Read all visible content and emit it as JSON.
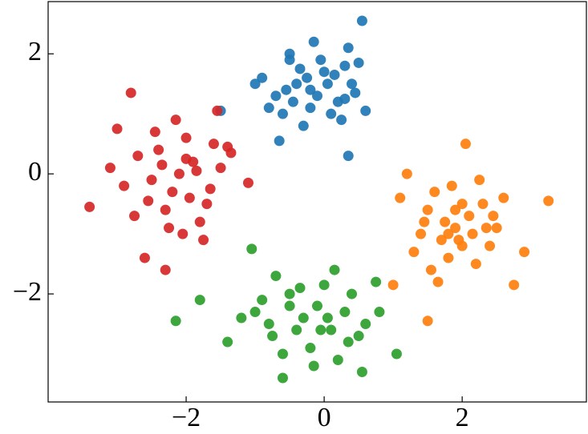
{
  "chart_data": {
    "type": "scatter",
    "xlim": [
      -4.0,
      3.8
    ],
    "ylim": [
      -3.8,
      2.87
    ],
    "xticks": [
      {
        "value": -2,
        "label": "−2"
      },
      0,
      2
    ],
    "yticks": [
      {
        "value": -2,
        "label": "−2"
      },
      0,
      2
    ],
    "grid": false,
    "series": [
      {
        "color": "#1f77b4",
        "x": [
          0.55,
          -0.15,
          -0.5,
          0.35,
          -1.5,
          0.6,
          -0.9,
          -0.7,
          -0.4,
          -0.2,
          0.0,
          0.2,
          0.4,
          -0.6,
          -0.3,
          0.1,
          -0.1,
          -0.8,
          0.3,
          -0.5,
          -0.25,
          0.05,
          -0.45,
          0.25,
          -1.0,
          0.45,
          -0.35,
          0.15,
          -0.65,
          0.35,
          -0.2,
          0.5,
          -0.55,
          0.3,
          -0.05
        ],
        "values": [
          2.55,
          2.2,
          2.0,
          2.1,
          1.05,
          1.05,
          1.6,
          1.3,
          1.5,
          1.4,
          1.7,
          1.2,
          1.5,
          1.0,
          0.8,
          1.0,
          1.3,
          1.1,
          1.8,
          1.9,
          1.6,
          1.5,
          1.2,
          0.9,
          1.5,
          1.35,
          1.75,
          1.65,
          0.55,
          0.3,
          1.1,
          1.85,
          1.4,
          1.25,
          1.9
        ]
      },
      {
        "color": "#ff7f0e",
        "x": [
          3.25,
          1.5,
          1.0,
          2.05,
          2.75,
          1.2,
          1.9,
          1.7,
          2.1,
          2.3,
          1.5,
          1.8,
          2.0,
          2.5,
          1.4,
          2.2,
          1.6,
          2.4,
          1.9,
          1.3,
          2.6,
          1.75,
          2.15,
          1.55,
          2.35,
          1.85,
          2.9,
          1.1,
          2.0,
          1.65,
          2.45,
          1.95,
          1.45,
          2.25,
          1.8
        ],
        "values": [
          -0.45,
          -2.45,
          -1.85,
          0.5,
          -1.85,
          0.0,
          -0.9,
          -1.1,
          -0.7,
          -0.5,
          -0.6,
          -1.4,
          -1.2,
          -0.9,
          -1.0,
          -1.5,
          -0.3,
          -1.2,
          -0.6,
          -1.3,
          -0.4,
          -0.8,
          -1.0,
          -1.6,
          -0.9,
          -0.2,
          -1.3,
          -0.4,
          -0.5,
          -1.8,
          -0.7,
          -1.1,
          -0.8,
          -0.1,
          -1.0
        ]
      },
      {
        "color": "#2ca02c",
        "x": [
          -2.15,
          -1.8,
          -1.05,
          -0.6,
          1.05,
          0.75,
          -1.4,
          -0.3,
          -0.1,
          0.1,
          -0.5,
          -0.8,
          0.3,
          -0.2,
          0.5,
          -0.7,
          0.0,
          -1.0,
          0.2,
          -0.4,
          -0.9,
          0.4,
          -0.15,
          0.6,
          -0.6,
          0.05,
          -1.2,
          0.35,
          -0.35,
          0.8,
          -0.75,
          0.15,
          -0.5,
          0.55,
          -0.05
        ],
        "values": [
          -2.45,
          -2.1,
          -1.25,
          -3.4,
          -3.0,
          -1.8,
          -2.8,
          -2.4,
          -2.2,
          -2.6,
          -2.0,
          -2.5,
          -2.3,
          -2.9,
          -2.7,
          -1.7,
          -1.85,
          -2.3,
          -3.1,
          -2.6,
          -2.1,
          -2.0,
          -3.2,
          -2.5,
          -3.0,
          -2.4,
          -2.4,
          -2.8,
          -1.9,
          -2.3,
          -2.7,
          -1.6,
          -2.2,
          -3.3,
          -2.6
        ]
      },
      {
        "color": "#d62728",
        "x": [
          -3.4,
          -2.8,
          -1.55,
          -2.6,
          -1.1,
          -3.0,
          -2.3,
          -2.1,
          -1.9,
          -2.2,
          -2.4,
          -1.7,
          -2.0,
          -2.5,
          -1.8,
          -2.7,
          -1.5,
          -2.3,
          -1.95,
          -2.15,
          -2.9,
          -1.6,
          -2.05,
          -1.35,
          -2.45,
          -1.85,
          -3.1,
          -2.25,
          -1.65,
          -2.55,
          -1.4,
          -2.0,
          -2.75,
          -1.75,
          -2.35
        ],
        "values": [
          -0.55,
          1.35,
          1.05,
          -1.4,
          -0.15,
          0.75,
          -1.6,
          0.0,
          0.2,
          -0.3,
          0.4,
          -0.5,
          0.6,
          -0.1,
          -0.8,
          0.3,
          0.1,
          -0.6,
          -0.4,
          0.9,
          -0.2,
          0.5,
          -1.0,
          0.35,
          0.7,
          0.05,
          0.1,
          -0.9,
          -0.25,
          -0.45,
          0.45,
          0.25,
          -0.7,
          -1.1,
          0.15
        ]
      }
    ]
  }
}
